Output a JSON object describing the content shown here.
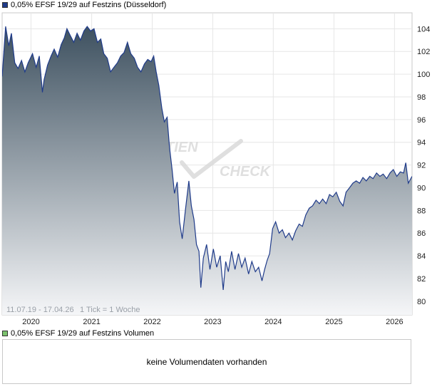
{
  "legend": {
    "price_series_label": "0,05% EFSF 19/29 auf Festzins (Düsseldorf)",
    "price_series_color": "#1f3b8a",
    "volume_series_label": "0,05% EFSF 19/29 auf Festzins Volumen",
    "volume_series_color": "#7cc36e"
  },
  "info": {
    "date_range": "11.07.19 - 17.04.26",
    "tick_info": "1 Tick = 1 Woche"
  },
  "watermark": {
    "word1": "TIEN",
    "word2": "CHECK"
  },
  "volume": {
    "message": "keine Volumendaten vorhanden"
  },
  "chart_data": {
    "type": "area",
    "title": "",
    "xlabel": "",
    "ylabel": "",
    "x_start": "2019-07-11",
    "x_end": "2026-04-17",
    "x_ticks": [
      "2020",
      "2021",
      "2022",
      "2023",
      "2024",
      "2025",
      "2026"
    ],
    "y_ticks": [
      80,
      82,
      84,
      86,
      88,
      90,
      92,
      94,
      96,
      98,
      100,
      102,
      104
    ],
    "ylim": [
      78.8,
      105.4
    ],
    "grid": true,
    "line_color": "#1f3b8a",
    "fill_top_color": "#3e5160",
    "fill_bottom_color": "#f5f6f8",
    "series": [
      {
        "x": [
          "2019-07-11",
          "2019-08-01",
          "2019-08-20",
          "2019-09-05",
          "2019-09-25",
          "2019-10-15",
          "2019-11-05",
          "2019-11-25",
          "2019-12-15",
          "2020-01-10",
          "2020-02-01",
          "2020-02-20",
          "2020-03-10",
          "2020-03-20",
          "2020-04-10",
          "2020-05-01",
          "2020-05-20",
          "2020-06-10",
          "2020-07-01",
          "2020-07-20",
          "2020-08-05",
          "2020-08-25",
          "2020-09-15",
          "2020-10-05",
          "2020-10-25",
          "2020-11-15",
          "2020-12-05",
          "2020-12-25",
          "2021-01-15",
          "2021-02-05",
          "2021-02-25",
          "2021-03-15",
          "2021-04-05",
          "2021-04-25",
          "2021-05-15",
          "2021-06-05",
          "2021-06-25",
          "2021-07-15",
          "2021-08-05",
          "2021-08-25",
          "2021-09-15",
          "2021-10-05",
          "2021-10-25",
          "2021-11-15",
          "2021-12-05",
          "2021-12-25",
          "2022-01-10",
          "2022-01-25",
          "2022-02-10",
          "2022-02-28",
          "2022-03-15",
          "2022-04-01",
          "2022-04-15",
          "2022-05-01",
          "2022-05-15",
          "2022-06-01",
          "2022-06-15",
          "2022-07-01",
          "2022-07-20",
          "2022-08-10",
          "2022-08-25",
          "2022-09-10",
          "2022-09-25",
          "2022-10-10",
          "2022-10-21",
          "2022-11-05",
          "2022-11-25",
          "2022-12-15",
          "2023-01-05",
          "2023-01-25",
          "2023-02-15",
          "2023-03-05",
          "2023-03-20",
          "2023-04-05",
          "2023-04-25",
          "2023-05-15",
          "2023-06-05",
          "2023-06-25",
          "2023-07-15",
          "2023-08-05",
          "2023-08-25",
          "2023-09-15",
          "2023-10-05",
          "2023-10-25",
          "2023-11-10",
          "2023-11-25",
          "2023-12-10",
          "2023-12-28",
          "2024-01-15",
          "2024-02-05",
          "2024-02-25",
          "2024-03-15",
          "2024-04-05",
          "2024-04-25",
          "2024-05-15",
          "2024-06-05",
          "2024-06-25",
          "2024-07-15",
          "2024-08-05",
          "2024-08-25",
          "2024-09-15",
          "2024-10-05",
          "2024-10-25",
          "2024-11-15",
          "2024-12-05",
          "2024-12-25",
          "2025-01-15",
          "2025-02-05",
          "2025-02-25",
          "2025-03-15",
          "2025-04-05",
          "2025-04-25",
          "2025-05-15",
          "2025-06-05",
          "2025-06-25",
          "2025-07-15",
          "2025-08-05",
          "2025-08-25",
          "2025-09-15",
          "2025-10-05",
          "2025-10-25",
          "2025-11-15",
          "2025-12-05",
          "2025-12-25",
          "2026-01-15",
          "2026-02-05",
          "2026-02-25",
          "2026-03-10",
          "2026-03-25",
          "2026-04-17"
        ],
        "y": [
          99.8,
          104.2,
          102.5,
          103.6,
          101.0,
          100.5,
          101.2,
          100.2,
          101.0,
          101.8,
          100.6,
          101.6,
          98.4,
          99.5,
          100.8,
          101.6,
          102.2,
          101.5,
          102.6,
          103.2,
          104.0,
          103.4,
          102.8,
          103.6,
          103.0,
          103.8,
          104.2,
          103.8,
          104.0,
          102.8,
          103.1,
          101.8,
          101.4,
          100.2,
          100.6,
          101.0,
          101.6,
          101.9,
          102.8,
          101.8,
          101.4,
          100.6,
          100.2,
          100.9,
          101.3,
          101.1,
          101.6,
          100.2,
          99.0,
          97.0,
          95.8,
          96.2,
          93.6,
          91.6,
          89.5,
          90.5,
          87.0,
          85.5,
          88.0,
          90.6,
          88.4,
          87.2,
          85.0,
          84.4,
          81.2,
          83.8,
          85.0,
          82.8,
          84.6,
          83.0,
          84.0,
          81.0,
          83.5,
          82.6,
          84.4,
          82.8,
          84.2,
          83.0,
          83.8,
          82.4,
          83.5,
          82.6,
          83.0,
          81.8,
          82.8,
          83.6,
          84.2,
          86.4,
          87.0,
          86.0,
          86.3,
          85.6,
          86.0,
          85.4,
          86.2,
          86.8,
          86.6,
          87.6,
          88.2,
          88.4,
          88.9,
          88.6,
          89.0,
          88.6,
          89.4,
          89.2,
          89.6,
          88.8,
          88.4,
          89.6,
          90.0,
          90.4,
          90.6,
          90.4,
          90.9,
          90.6,
          91.0,
          90.8,
          91.3,
          91.0,
          91.2,
          90.8,
          91.3,
          91.6,
          91.0,
          91.4,
          91.3,
          92.2,
          90.4,
          91.0
        ]
      }
    ]
  }
}
